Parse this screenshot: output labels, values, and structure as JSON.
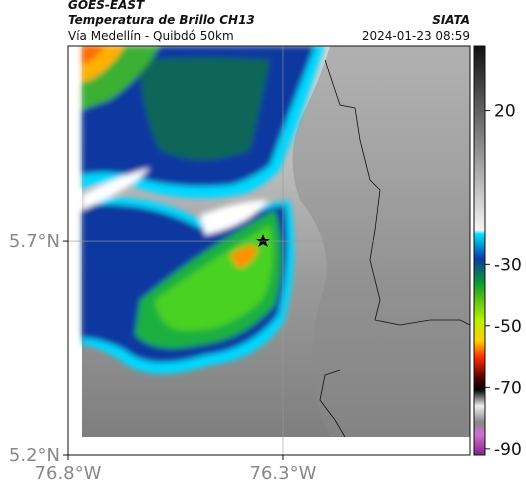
{
  "header": {
    "title": "GOES-EAST",
    "subtitle": "Temperatura de Brillo CH13",
    "source": "SIATA",
    "region": "Vía Medellín - Quibdó 50km",
    "timestamp": "2024-01-23 08:59"
  },
  "map": {
    "xlim": [
      -76.8,
      -75.865
    ],
    "ylim": [
      5.2,
      6.156
    ],
    "xticks": [
      {
        "value": -76.8,
        "label": "76.8°W"
      },
      {
        "value": -76.3,
        "label": "76.3°W"
      }
    ],
    "yticks": [
      {
        "value": 5.7,
        "label": "5.7°N"
      },
      {
        "value": 5.2,
        "label": "5.2°N"
      }
    ],
    "grid": true
  },
  "colorbar": {
    "lim": [
      -92,
      41
    ],
    "ticks": [
      20,
      -30,
      -50,
      -70,
      -90
    ]
  }
}
